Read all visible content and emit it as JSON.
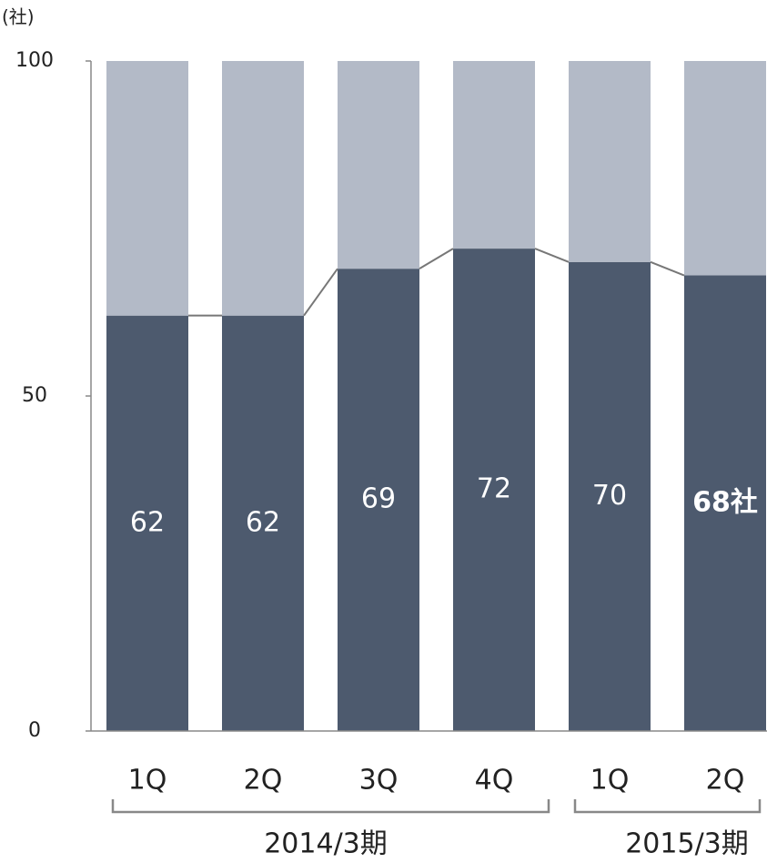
{
  "chart_data": {
    "type": "stacked_bar",
    "unit_label": "(社)",
    "categories": [
      "1Q",
      "2Q",
      "3Q",
      "4Q",
      "1Q",
      "2Q"
    ],
    "group_labels": [
      "2014/3期",
      "2015/3期"
    ],
    "series": [
      {
        "color": "#4d5a6e",
        "values": [
          62,
          62,
          69,
          72,
          70,
          68
        ],
        "value_labels": [
          "62",
          "62",
          "69",
          "72",
          "70",
          "68社"
        ]
      },
      {
        "color": "#b3bac7",
        "values": [
          38,
          38,
          31,
          28,
          30,
          32
        ]
      }
    ],
    "ylim": [
      0,
      100
    ],
    "yticks": [
      0,
      50,
      100
    ]
  }
}
